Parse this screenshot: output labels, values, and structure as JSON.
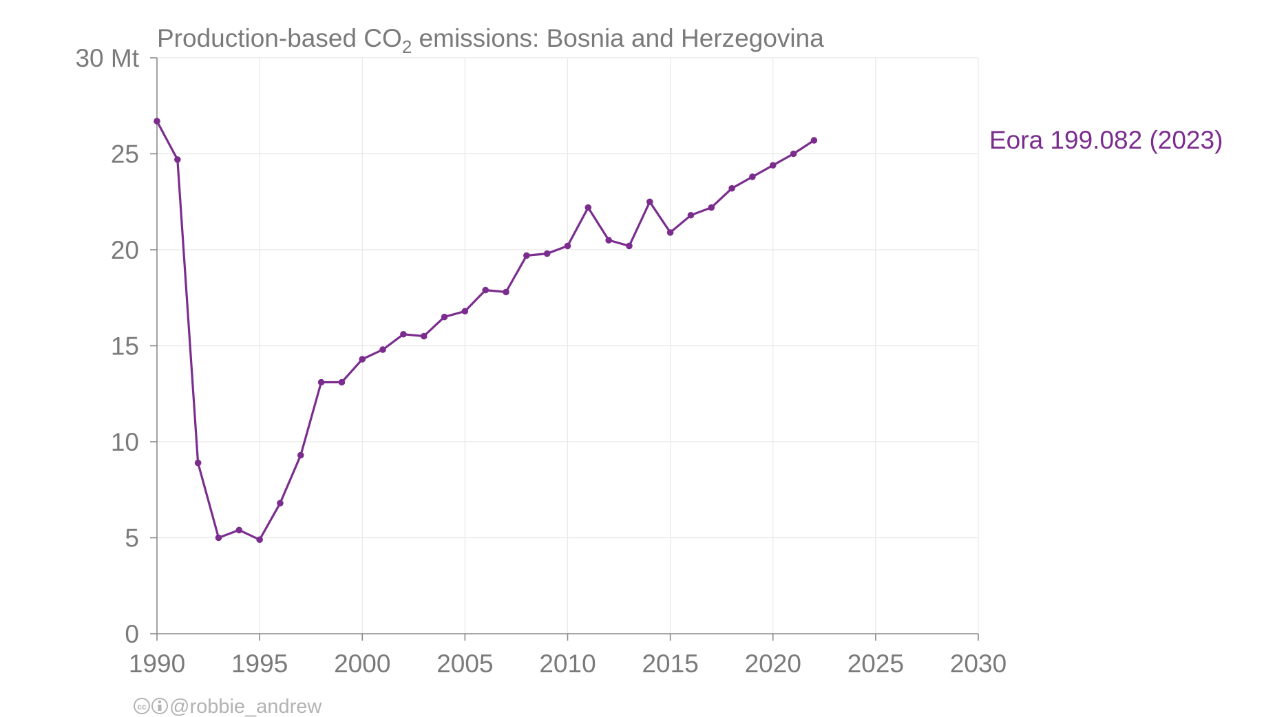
{
  "chart_data": {
    "type": "line",
    "title_prefix": "Production-based CO",
    "title_subscript": "2",
    "title_suffix": " emissions: Bosnia and Herzegovina",
    "ylim": [
      0,
      30
    ],
    "xlim": [
      1990,
      2030
    ],
    "y_ticks": [
      0,
      5,
      10,
      15,
      20,
      25,
      30
    ],
    "y_tick_labels": [
      "0",
      "5",
      "10",
      "15",
      "20",
      "25",
      "30 Mt"
    ],
    "x_ticks": [
      1990,
      1995,
      2000,
      2005,
      2010,
      2015,
      2020,
      2025,
      2030
    ],
    "x_tick_labels": [
      "1990",
      "1995",
      "2000",
      "2005",
      "2010",
      "2015",
      "2020",
      "2025",
      "2030"
    ],
    "grid": true,
    "series": [
      {
        "name": "Eora 199.082 (2023)",
        "color": "#7b2d8e",
        "x": [
          1990,
          1991,
          1992,
          1993,
          1994,
          1995,
          1996,
          1997,
          1998,
          1999,
          2000,
          2001,
          2002,
          2003,
          2004,
          2005,
          2006,
          2007,
          2008,
          2009,
          2010,
          2011,
          2012,
          2013,
          2014,
          2015,
          2016,
          2017,
          2018,
          2019,
          2020,
          2021,
          2022
        ],
        "y": [
          26.7,
          24.7,
          8.9,
          5.0,
          5.4,
          4.9,
          6.8,
          9.3,
          13.1,
          13.1,
          14.3,
          14.8,
          15.6,
          15.5,
          16.5,
          16.8,
          17.9,
          17.8,
          19.7,
          19.8,
          20.2,
          22.2,
          20.5,
          20.2,
          22.5,
          20.9,
          21.8,
          22.2,
          23.2,
          23.8,
          24.4,
          25.0,
          25.7
        ]
      }
    ]
  },
  "credit": {
    "handle": "@robbie_andrew"
  }
}
